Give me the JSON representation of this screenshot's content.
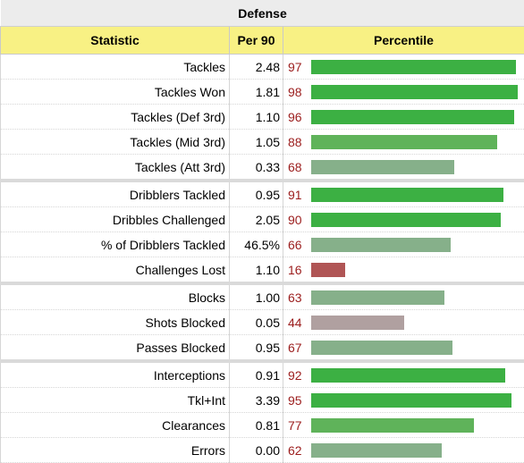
{
  "table": {
    "title": "Defense",
    "headers": {
      "statistic": "Statistic",
      "per90": "Per 90",
      "percentile": "Percentile"
    },
    "colors": {
      "high": "#3cb043",
      "mid": "#5fb35a",
      "average": "#86b08a",
      "below": "#b0a0a0",
      "low": "#b05555"
    },
    "rows": [
      {
        "stat": "Tackles",
        "per90": "2.48",
        "percentile": "97",
        "color": "high",
        "sep": false
      },
      {
        "stat": "Tackles Won",
        "per90": "1.81",
        "percentile": "98",
        "color": "high",
        "sep": false
      },
      {
        "stat": "Tackles (Def 3rd)",
        "per90": "1.10",
        "percentile": "96",
        "color": "high",
        "sep": false
      },
      {
        "stat": "Tackles (Mid 3rd)",
        "per90": "1.05",
        "percentile": "88",
        "color": "mid",
        "sep": false
      },
      {
        "stat": "Tackles (Att 3rd)",
        "per90": "0.33",
        "percentile": "68",
        "color": "average",
        "sep": false
      },
      {
        "stat": "Dribblers Tackled",
        "per90": "0.95",
        "percentile": "91",
        "color": "high",
        "sep": true
      },
      {
        "stat": "Dribbles Challenged",
        "per90": "2.05",
        "percentile": "90",
        "color": "high",
        "sep": false
      },
      {
        "stat": "% of Dribblers Tackled",
        "per90": "46.5%",
        "percentile": "66",
        "color": "average",
        "sep": false
      },
      {
        "stat": "Challenges Lost",
        "per90": "1.10",
        "percentile": "16",
        "color": "low",
        "sep": false
      },
      {
        "stat": "Blocks",
        "per90": "1.00",
        "percentile": "63",
        "color": "average",
        "sep": true
      },
      {
        "stat": "Shots Blocked",
        "per90": "0.05",
        "percentile": "44",
        "color": "below",
        "sep": false
      },
      {
        "stat": "Passes Blocked",
        "per90": "0.95",
        "percentile": "67",
        "color": "average",
        "sep": false
      },
      {
        "stat": "Interceptions",
        "per90": "0.91",
        "percentile": "92",
        "color": "high",
        "sep": true
      },
      {
        "stat": "Tkl+Int",
        "per90": "3.39",
        "percentile": "95",
        "color": "high",
        "sep": false
      },
      {
        "stat": "Clearances",
        "per90": "0.81",
        "percentile": "77",
        "color": "mid",
        "sep": false
      },
      {
        "stat": "Errors",
        "per90": "0.00",
        "percentile": "62",
        "color": "average",
        "sep": false
      }
    ]
  }
}
